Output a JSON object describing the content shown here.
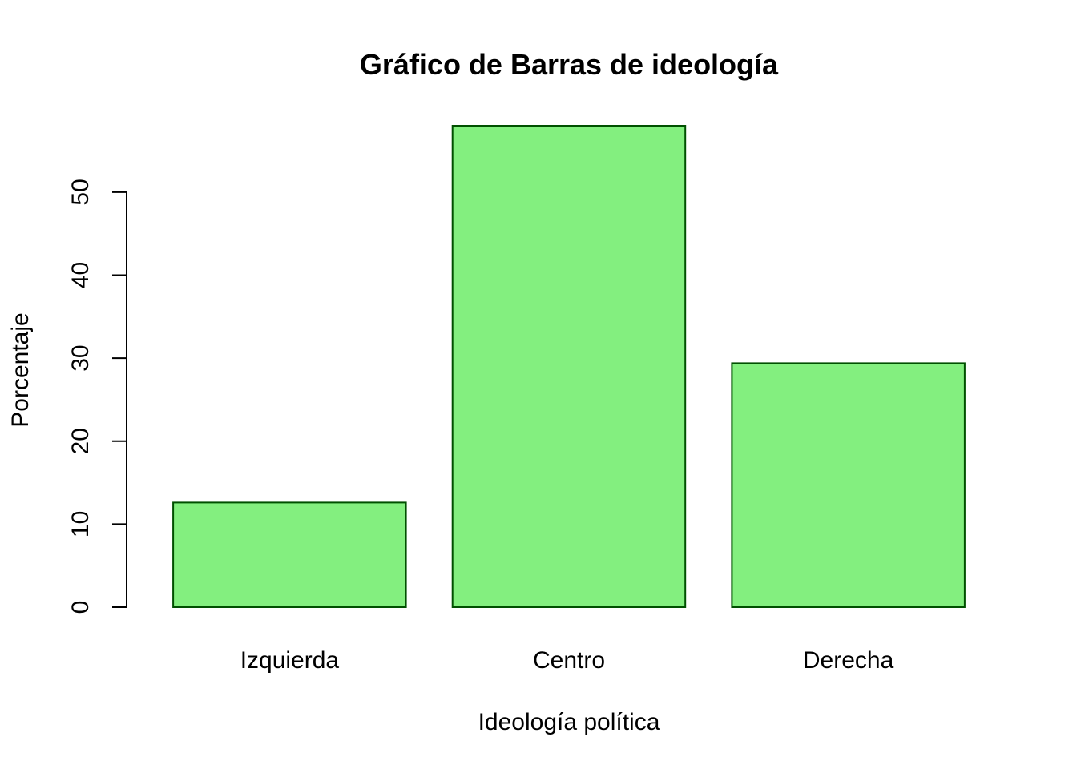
{
  "chart_data": {
    "type": "bar",
    "title": "Gráfico de Barras de ideología",
    "xlabel": "Ideología política",
    "ylabel": "Porcentaje",
    "categories": [
      "Izquierda",
      "Centro",
      "Derecha"
    ],
    "values": [
      12.6,
      58.0,
      29.4
    ],
    "ylim": [
      0,
      58
    ],
    "yticks": [
      0,
      10,
      20,
      30,
      40,
      50
    ],
    "grid": false,
    "legend": "none",
    "colors": {
      "bar_fill": "#83EF7F",
      "bar_stroke": "#005000"
    }
  }
}
